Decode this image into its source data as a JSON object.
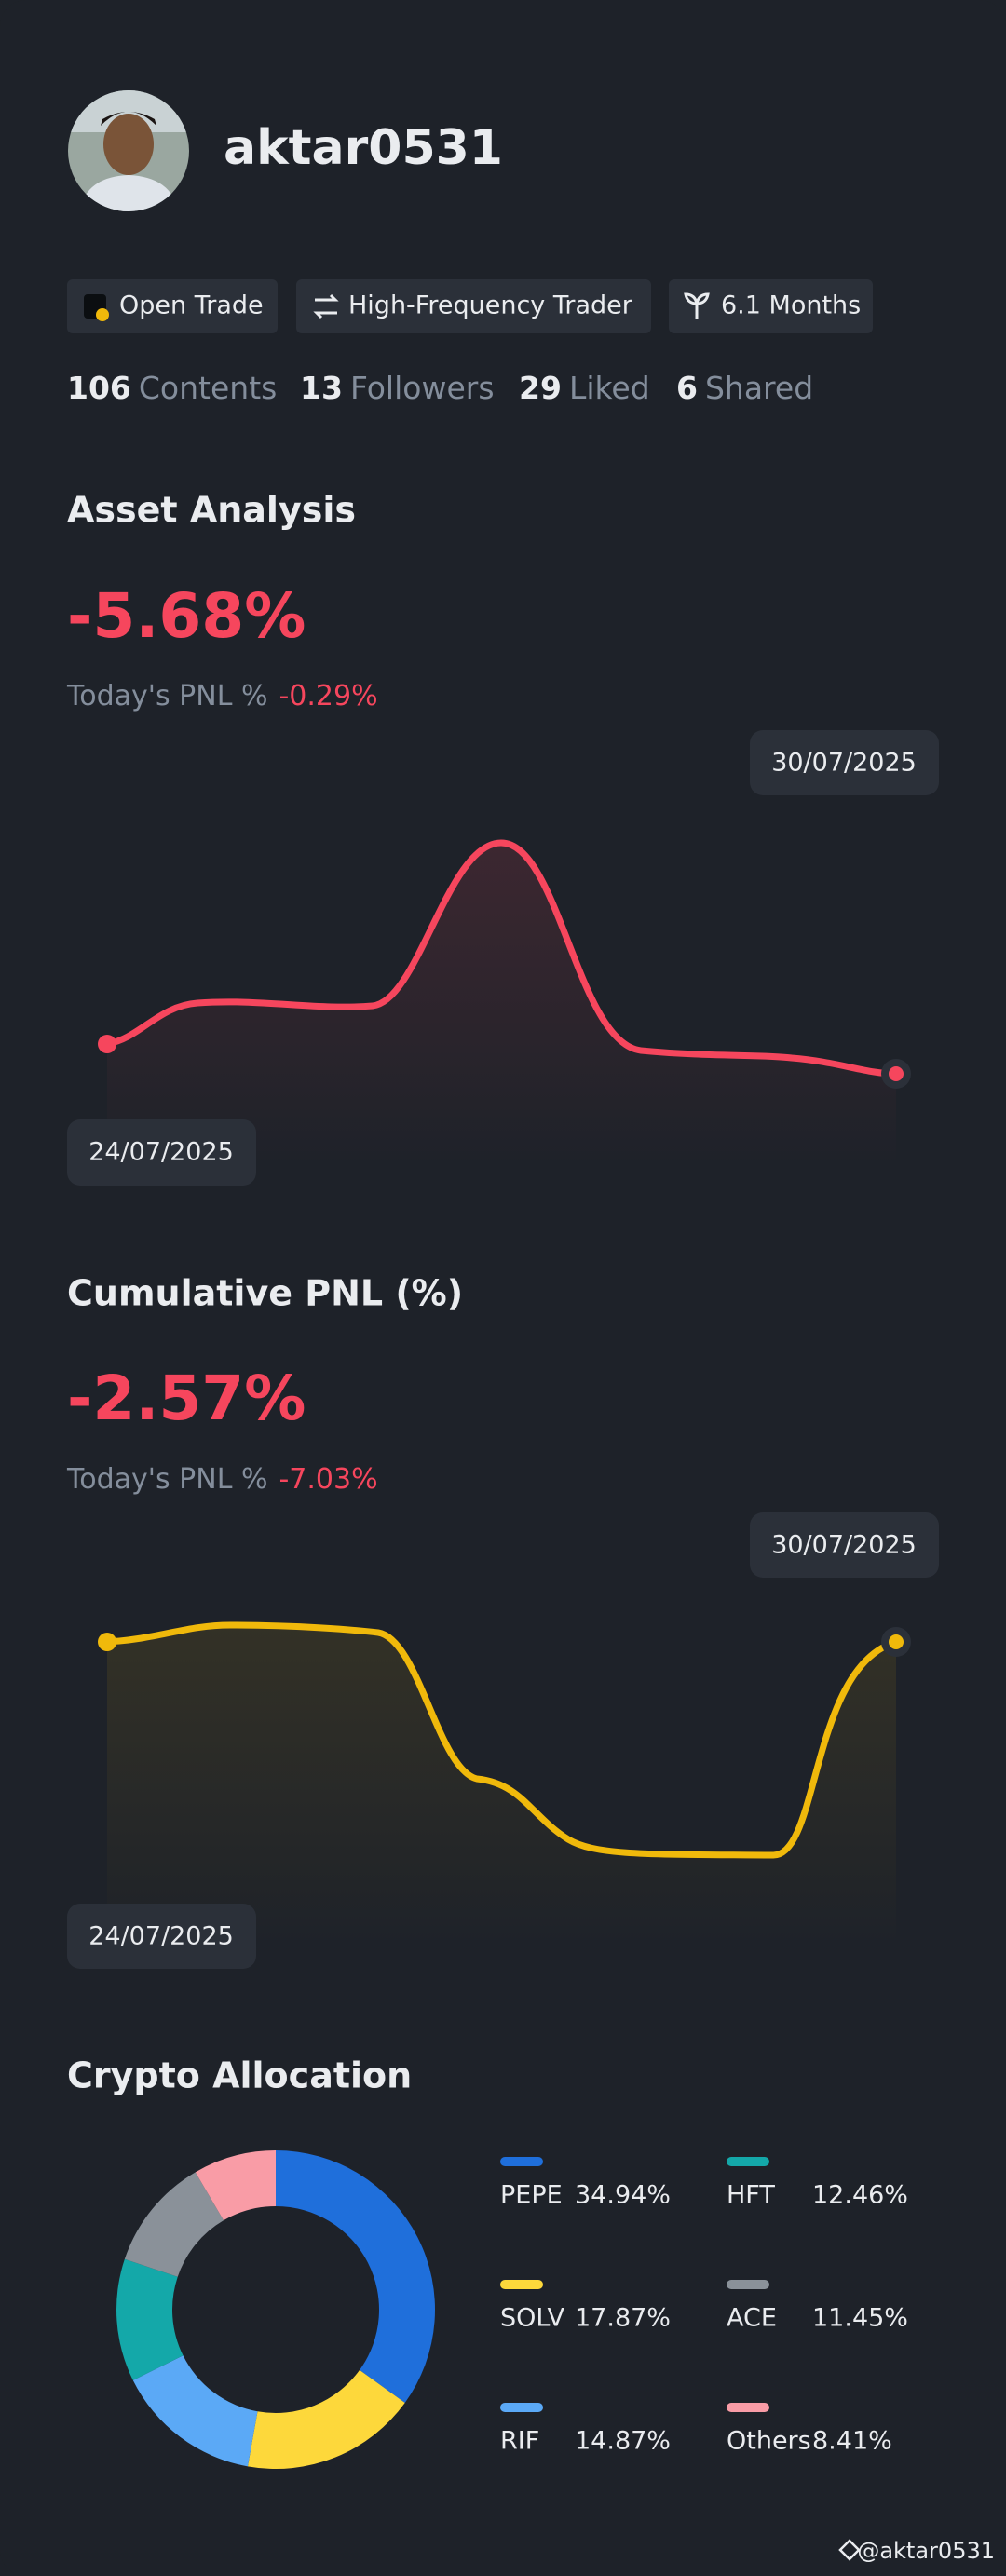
{
  "profile": {
    "username": "aktar0531",
    "badges": [
      "Open Trade",
      "High-Frequency Trader",
      "6.1 Months"
    ],
    "stats": [
      {
        "count": 106,
        "label": "Contents"
      },
      {
        "count": 13,
        "label": "Followers"
      },
      {
        "count": 29,
        "label": "Liked"
      },
      {
        "count": 6,
        "label": "Shared"
      }
    ]
  },
  "asset_analysis": {
    "title": "Asset Analysis",
    "value": "-5.68%",
    "today_label": "Today's PNL %",
    "today_value": "-0.29%",
    "start_date": "24/07/2025",
    "end_date": "30/07/2025"
  },
  "cumulative_pnl": {
    "title": "Cumulative PNL (%)",
    "value": "-2.57%",
    "today_label": "Today's PNL %",
    "today_value": "-7.03%",
    "start_date": "24/07/2025",
    "end_date": "30/07/2025"
  },
  "crypto_allocation": {
    "title": "Crypto Allocation",
    "items": [
      {
        "name": "PEPE",
        "value": 34.94,
        "value_label": "34.94%",
        "color": "#1f6fdb"
      },
      {
        "name": "SOLV",
        "value": 17.87,
        "value_label": "17.87%",
        "color": "#fdd83b"
      },
      {
        "name": "RIF",
        "value": 14.87,
        "value_label": "14.87%",
        "color": "#5ba9f6"
      },
      {
        "name": "HFT",
        "value": 12.46,
        "value_label": "12.46%",
        "color": "#14a8a9"
      },
      {
        "name": "ACE",
        "value": 11.45,
        "value_label": "11.45%",
        "color": "#8a9199"
      },
      {
        "name": "Others",
        "value": 8.41,
        "value_label": "8.41%",
        "color": "#f99ca6"
      }
    ]
  },
  "watermark": "@aktar0531"
}
